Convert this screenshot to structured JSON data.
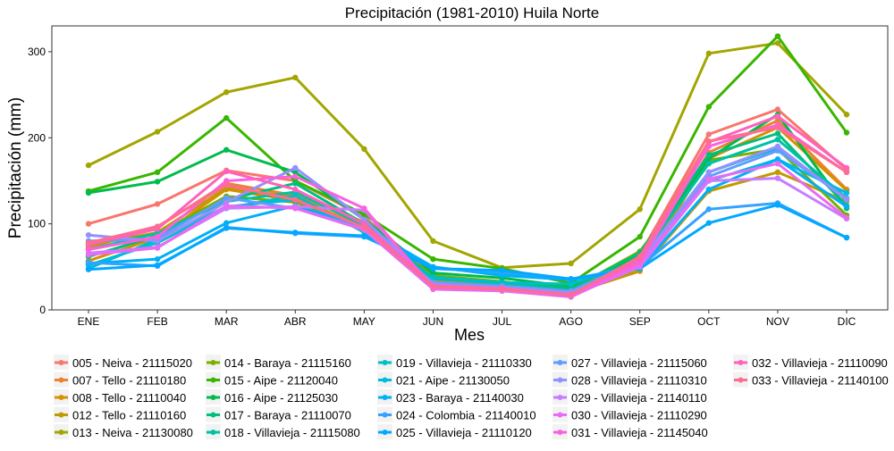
{
  "chart_data": {
    "type": "line",
    "title": "Precipitación (1981-2010)  Huila Norte",
    "xlabel": "Mes",
    "ylabel": "Precipitación (mm)",
    "categories": [
      "ENE",
      "FEB",
      "MAR",
      "ABR",
      "MAY",
      "JUN",
      "JUL",
      "AGO",
      "SEP",
      "OCT",
      "NOV",
      "DIC"
    ],
    "y_ticks": [
      0,
      100,
      200,
      300
    ],
    "ylim": [
      0,
      330
    ],
    "grid": false,
    "legend_position": "bottom",
    "series": [
      {
        "name": "005 - Neiva - 21115020",
        "color": "#F8766D",
        "values": [
          100,
          123,
          162,
          150,
          108,
          40,
          30,
          22,
          64,
          204,
          233,
          163
        ]
      },
      {
        "name": "007 - Tello - 21110180",
        "color": "#EA8331",
        "values": [
          72,
          96,
          147,
          133,
          102,
          34,
          30,
          20,
          50,
          183,
          220,
          140
        ]
      },
      {
        "name": "008 - Tello - 21110040",
        "color": "#D89000",
        "values": [
          57,
          84,
          140,
          127,
          92,
          30,
          26,
          19,
          45,
          176,
          212,
          139
        ]
      },
      {
        "name": "012 - Tello - 21110160",
        "color": "#C09B00",
        "values": [
          75,
          90,
          142,
          131,
          96,
          31,
          27,
          19,
          46,
          138,
          160,
          126
        ]
      },
      {
        "name": "013 - Neiva - 21130080",
        "color": "#A3A500",
        "values": [
          168,
          207,
          253,
          270,
          187,
          80,
          49,
          54,
          117,
          298,
          310,
          227
        ]
      },
      {
        "name": "014 - Baraya - 21115160",
        "color": "#7CAE00",
        "values": [
          77,
          88,
          132,
          125,
          95,
          40,
          33,
          24,
          68,
          174,
          187,
          110
        ]
      },
      {
        "name": "015 - Aipe - 21120040",
        "color": "#39B600",
        "values": [
          138,
          160,
          223,
          150,
          111,
          59,
          48,
          31,
          85,
          236,
          318,
          206
        ]
      },
      {
        "name": "016 - Aipe - 21125030",
        "color": "#00BB4E",
        "values": [
          136,
          149,
          186,
          160,
          105,
          43,
          37,
          27,
          62,
          176,
          227,
          118
        ]
      },
      {
        "name": "017 - Baraya - 21110070",
        "color": "#00BF7D",
        "values": [
          62,
          86,
          128,
          147,
          100,
          37,
          32,
          25,
          66,
          180,
          205,
          121
        ]
      },
      {
        "name": "018 - Villavieja - 21115080",
        "color": "#00C1A3",
        "values": [
          70,
          89,
          126,
          137,
          98,
          36,
          31,
          22,
          60,
          170,
          198,
          130
        ]
      },
      {
        "name": "019 - Villavieja - 21110330",
        "color": "#00BFC4",
        "values": [
          52,
          78,
          118,
          133,
          90,
          38,
          32,
          30,
          56,
          160,
          188,
          128
        ]
      },
      {
        "name": "021 - Aipe - 21130050",
        "color": "#00BAE0",
        "values": [
          48,
          82,
          120,
          128,
          93,
          49,
          42,
          35,
          52,
          150,
          175,
          136
        ]
      },
      {
        "name": "023 - Baraya - 21140030",
        "color": "#00B0F6",
        "values": [
          54,
          59,
          101,
          121,
          96,
          50,
          40,
          35,
          48,
          140,
          175,
          120
        ]
      },
      {
        "name": "024 - Colombia - 21140010",
        "color": "#35A2FF",
        "values": [
          55,
          51,
          96,
          89,
          85,
          48,
          44,
          36,
          50,
          117,
          124,
          84
        ]
      },
      {
        "name": "025 - Villavieja - 21110120",
        "color": "#00A9FF",
        "values": [
          47,
          52,
          95,
          90,
          86,
          48,
          46,
          36,
          48,
          101,
          122,
          84
        ]
      },
      {
        "name": "027 - Villavieja - 21115060",
        "color": "#619CFF",
        "values": [
          80,
          83,
          130,
          118,
          95,
          32,
          28,
          22,
          58,
          155,
          185,
          130
        ]
      },
      {
        "name": "028 - Villavieja - 21110310",
        "color": "#9590FF",
        "values": [
          87,
          80,
          125,
          165,
          105,
          30,
          26,
          20,
          55,
          160,
          190,
          128
        ]
      },
      {
        "name": "029 - Villavieja - 21140110",
        "color": "#C77CFF",
        "values": [
          66,
          73,
          118,
          120,
          116,
          25,
          24,
          16,
          50,
          150,
          153,
          106
        ]
      },
      {
        "name": "030 - Villavieja - 21110290",
        "color": "#E76BF3",
        "values": [
          64,
          72,
          121,
          118,
          93,
          24,
          22,
          15,
          52,
          152,
          170,
          107
        ]
      },
      {
        "name": "031 - Villavieja - 21145040",
        "color": "#FA62DB",
        "values": [
          70,
          85,
          150,
          155,
          118,
          26,
          24,
          17,
          55,
          190,
          215,
          160
        ]
      },
      {
        "name": "032 - Villavieja - 21110090",
        "color": "#FF62BC",
        "values": [
          76,
          94,
          161,
          140,
          100,
          28,
          25,
          18,
          58,
          195,
          225,
          165
        ]
      },
      {
        "name": "033 - Villavieja - 21140100",
        "color": "#FF6C91",
        "values": [
          78,
          97,
          145,
          128,
          96,
          27,
          24,
          17,
          62,
          196,
          212,
          160
        ]
      }
    ]
  }
}
